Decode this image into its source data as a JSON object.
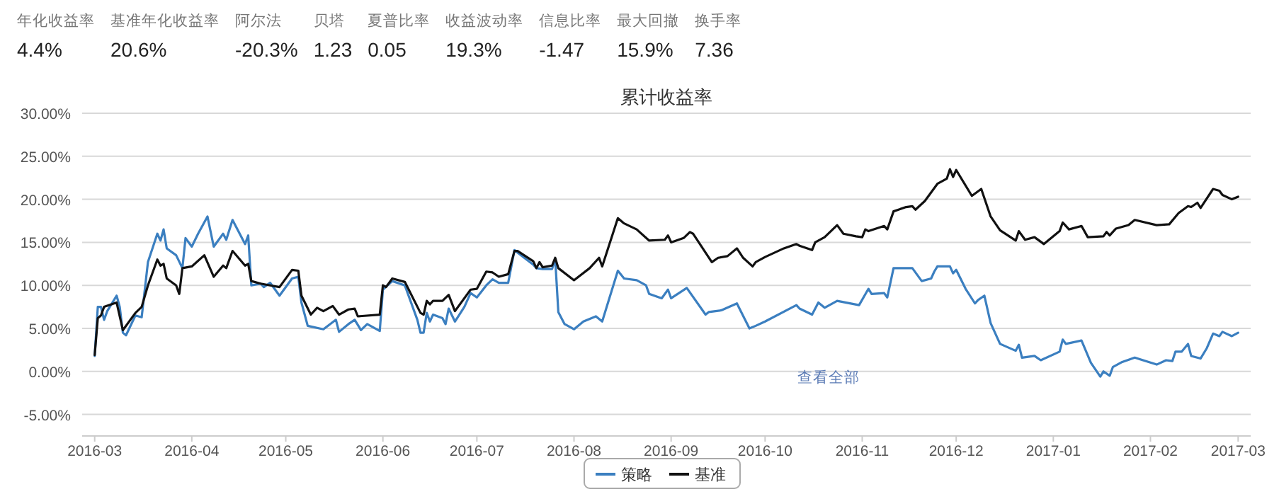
{
  "chart_data": {
    "type": "line",
    "title": "累计收益率",
    "annotations": [
      "年化收益率\n4.4%",
      "基准年化收益率\n20.6%",
      "阿尔法\n-20.3%",
      "贝塔\n1.23",
      "夏普比率\n0.05",
      "收益波动率\n19.3%",
      "信息比率\n-1.47",
      "最大回撤\n15.9%",
      "换手率\n7.36",
      "查看全部"
    ],
    "xlim": [
      "2016-02-26",
      "2017-03-05"
    ],
    "xticks": [
      "2016-03",
      "2016-04",
      "2016-05",
      "2016-06",
      "2016-07",
      "2016-08",
      "2016-09",
      "2016-10",
      "2016-11",
      "2016-12",
      "2017-01",
      "2017-02",
      "2017-03"
    ],
    "ylim": [
      -7.5,
      30
    ],
    "yticks": [
      {
        "value": -5,
        "label": "-5.00%"
      },
      {
        "value": 0,
        "label": "0.00%"
      },
      {
        "value": 5,
        "label": "5.00%"
      },
      {
        "value": 10,
        "label": "10.00%"
      },
      {
        "value": 15,
        "label": "15.00%"
      },
      {
        "value": 20,
        "label": "20.00%"
      },
      {
        "value": 25,
        "label": "25.00%"
      },
      {
        "value": 30,
        "label": "30.00%"
      }
    ],
    "grid": "y",
    "legend": "bottom",
    "marker": "none",
    "line_style": "solid",
    "series": [
      {
        "name": "策略",
        "color": "#3b7fc0",
        "x": [
          "2016-03-01",
          "2016-03-02",
          "2016-03-03",
          "2016-03-04",
          "2016-03-05",
          "2016-03-08",
          "2016-03-09",
          "2016-03-10",
          "2016-03-11",
          "2016-03-14",
          "2016-03-16",
          "2016-03-18",
          "2016-03-21",
          "2016-03-22",
          "2016-03-23",
          "2016-03-24",
          "2016-03-27",
          "2016-03-29",
          "2016-03-30",
          "2016-04-01",
          "2016-04-03",
          "2016-04-06",
          "2016-04-08",
          "2016-04-11",
          "2016-04-12",
          "2016-04-14",
          "2016-04-18",
          "2016-04-19",
          "2016-04-20",
          "2016-04-23",
          "2016-04-24",
          "2016-04-26",
          "2016-04-29",
          "2016-05-03",
          "2016-05-05",
          "2016-05-06",
          "2016-05-08",
          "2016-05-13",
          "2016-05-17",
          "2016-05-18",
          "2016-05-21",
          "2016-05-23",
          "2016-05-25",
          "2016-05-27",
          "2016-05-31",
          "2016-06-01",
          "2016-06-04",
          "2016-06-08",
          "2016-06-12",
          "2016-06-13",
          "2016-06-14",
          "2016-06-15",
          "2016-06-16",
          "2016-06-17",
          "2016-06-20",
          "2016-06-21",
          "2016-06-22",
          "2016-06-24",
          "2016-06-27",
          "2016-06-29",
          "2016-07-01",
          "2016-07-04",
          "2016-07-06",
          "2016-07-08",
          "2016-07-11",
          "2016-07-13",
          "2016-07-14",
          "2016-07-19",
          "2016-07-20",
          "2016-07-22",
          "2016-07-25",
          "2016-07-26",
          "2016-07-27",
          "2016-07-29",
          "2016-08-01",
          "2016-08-04",
          "2016-08-08",
          "2016-08-10",
          "2016-08-15",
          "2016-08-17",
          "2016-08-21",
          "2016-08-24",
          "2016-08-25",
          "2016-08-29",
          "2016-08-31",
          "2016-09-01",
          "2016-09-06",
          "2016-09-12",
          "2016-09-13",
          "2016-09-17",
          "2016-09-22",
          "2016-09-26",
          "2016-09-28",
          "2016-10-01",
          "2016-10-11",
          "2016-10-12",
          "2016-10-16",
          "2016-10-18",
          "2016-10-20",
          "2016-10-24",
          "2016-10-31",
          "2016-11-03",
          "2016-11-04",
          "2016-11-08",
          "2016-11-09",
          "2016-11-11",
          "2016-11-17",
          "2016-11-20",
          "2016-11-23",
          "2016-11-24",
          "2016-11-25",
          "2016-11-29",
          "2016-11-30",
          "2016-12-01",
          "2016-12-04",
          "2016-12-07",
          "2016-12-08",
          "2016-12-10",
          "2016-12-12",
          "2016-12-15",
          "2016-12-20",
          "2016-12-21",
          "2016-12-22",
          "2016-12-26",
          "2016-12-28",
          "2017-01-03",
          "2017-01-04",
          "2017-01-05",
          "2017-01-10",
          "2017-01-13",
          "2017-01-16",
          "2017-01-17",
          "2017-01-19",
          "2017-01-20",
          "2017-01-23",
          "2017-01-27",
          "2017-02-03",
          "2017-02-06",
          "2017-02-08",
          "2017-02-09",
          "2017-02-11",
          "2017-02-13",
          "2017-02-14",
          "2017-02-17",
          "2017-02-19",
          "2017-02-21",
          "2017-02-23",
          "2017-02-24",
          "2017-02-27",
          "2017-03-01"
        ],
        "values": [
          1.8,
          7.5,
          7.5,
          6.0,
          7.0,
          8.8,
          7.5,
          4.5,
          4.2,
          6.5,
          6.3,
          12.7,
          16.0,
          15.2,
          16.5,
          14.3,
          13.5,
          12.0,
          15.5,
          14.5,
          16.0,
          18.0,
          14.5,
          16.0,
          15.3,
          17.6,
          14.8,
          15.8,
          10.0,
          10.2,
          9.8,
          10.3,
          8.8,
          10.8,
          11.0,
          8.0,
          5.3,
          4.9,
          6.0,
          4.6,
          5.5,
          6.0,
          4.8,
          5.5,
          4.7,
          9.5,
          10.5,
          10.0,
          6.0,
          4.5,
          4.5,
          6.8,
          5.8,
          6.6,
          6.2,
          5.5,
          7.3,
          5.8,
          7.5,
          9.1,
          8.6,
          10.0,
          10.7,
          10.3,
          10.3,
          14.1,
          13.8,
          12.4,
          12.0,
          11.9,
          11.9,
          13.1,
          6.9,
          5.5,
          4.9,
          5.8,
          6.4,
          5.8,
          11.7,
          10.8,
          10.6,
          10.0,
          9.0,
          8.5,
          9.5,
          8.5,
          9.7,
          6.6,
          6.9,
          7.1,
          7.9,
          5.0,
          5.3,
          5.8,
          7.7,
          7.3,
          6.6,
          8.0,
          7.4,
          8.2,
          7.7,
          9.6,
          9.0,
          9.1,
          8.6,
          12.0,
          12.0,
          10.5,
          10.8,
          11.6,
          12.2,
          12.2,
          11.4,
          11.8,
          9.6,
          7.9,
          8.3,
          8.8,
          5.6,
          3.2,
          2.4,
          3.1,
          1.6,
          1.8,
          1.3,
          2.3,
          3.7,
          3.2,
          3.6,
          1.0,
          -0.6,
          0.0,
          -0.5,
          0.5,
          1.1,
          1.6,
          0.8,
          1.3,
          1.2,
          2.3,
          2.3,
          3.2,
          1.8,
          1.5,
          2.7,
          4.4,
          4.1,
          4.6,
          4.1,
          4.5
        ]
      },
      {
        "name": "基准",
        "color": "#111111",
        "x": [
          "2016-03-01",
          "2016-03-02",
          "2016-03-03",
          "2016-03-04",
          "2016-03-08",
          "2016-03-10",
          "2016-03-14",
          "2016-03-16",
          "2016-03-18",
          "2016-03-21",
          "2016-03-22",
          "2016-03-23",
          "2016-03-24",
          "2016-03-27",
          "2016-03-28",
          "2016-03-29",
          "2016-04-01",
          "2016-04-05",
          "2016-04-08",
          "2016-04-11",
          "2016-04-12",
          "2016-04-14",
          "2016-04-18",
          "2016-04-19",
          "2016-04-20",
          "2016-04-23",
          "2016-04-26",
          "2016-04-29",
          "2016-05-03",
          "2016-05-05",
          "2016-05-06",
          "2016-05-09",
          "2016-05-11",
          "2016-05-13",
          "2016-05-16",
          "2016-05-18",
          "2016-05-21",
          "2016-05-23",
          "2016-05-24",
          "2016-05-31",
          "2016-06-01",
          "2016-06-02",
          "2016-06-04",
          "2016-06-08",
          "2016-06-13",
          "2016-06-14",
          "2016-06-15",
          "2016-06-16",
          "2016-06-17",
          "2016-06-20",
          "2016-06-22",
          "2016-06-24",
          "2016-06-29",
          "2016-07-01",
          "2016-07-04",
          "2016-07-06",
          "2016-07-08",
          "2016-07-11",
          "2016-07-13",
          "2016-07-14",
          "2016-07-19",
          "2016-07-20",
          "2016-07-21",
          "2016-07-22",
          "2016-07-25",
          "2016-07-26",
          "2016-07-27",
          "2016-08-01",
          "2016-08-06",
          "2016-08-09",
          "2016-08-10",
          "2016-08-15",
          "2016-08-17",
          "2016-08-21",
          "2016-08-25",
          "2016-08-30",
          "2016-08-31",
          "2016-09-01",
          "2016-09-05",
          "2016-09-07",
          "2016-09-08",
          "2016-09-14",
          "2016-09-16",
          "2016-09-19",
          "2016-09-22",
          "2016-09-24",
          "2016-09-27",
          "2016-09-28",
          "2016-10-01",
          "2016-10-07",
          "2016-10-11",
          "2016-10-12",
          "2016-10-16",
          "2016-10-17",
          "2016-10-20",
          "2016-10-24",
          "2016-10-26",
          "2016-10-30",
          "2016-11-01",
          "2016-11-02",
          "2016-11-03",
          "2016-11-08",
          "2016-11-09",
          "2016-11-11",
          "2016-11-15",
          "2016-11-17",
          "2016-11-18",
          "2016-11-21",
          "2016-11-25",
          "2016-11-28",
          "2016-11-29",
          "2016-11-30",
          "2016-12-01",
          "2016-12-06",
          "2016-12-09",
          "2016-12-12",
          "2016-12-15",
          "2016-12-20",
          "2016-12-21",
          "2016-12-23",
          "2016-12-26",
          "2016-12-29",
          "2017-01-03",
          "2017-01-04",
          "2017-01-06",
          "2017-01-10",
          "2017-01-12",
          "2017-01-17",
          "2017-01-18",
          "2017-01-19",
          "2017-01-21",
          "2017-01-25",
          "2017-01-27",
          "2017-02-03",
          "2017-02-07",
          "2017-02-10",
          "2017-02-13",
          "2017-02-14",
          "2017-02-16",
          "2017-02-17",
          "2017-02-21",
          "2017-02-23",
          "2017-02-24",
          "2017-02-27",
          "2017-03-01"
        ],
        "values": [
          1.9,
          6.2,
          6.5,
          7.5,
          8.0,
          4.8,
          6.8,
          7.5,
          10.0,
          13.0,
          12.3,
          12.5,
          10.8,
          10.0,
          9.0,
          12.0,
          12.2,
          13.5,
          11.0,
          12.3,
          12.0,
          14.0,
          12.3,
          12.5,
          10.5,
          10.2,
          10.0,
          9.8,
          11.8,
          11.7,
          8.8,
          6.6,
          7.4,
          7.0,
          7.6,
          6.6,
          7.2,
          7.3,
          6.4,
          6.6,
          10.0,
          9.8,
          10.8,
          10.4,
          6.8,
          6.6,
          8.2,
          7.8,
          8.2,
          8.2,
          8.9,
          7.0,
          9.5,
          9.6,
          11.6,
          11.5,
          11.0,
          11.3,
          14.0,
          14.0,
          12.8,
          12.0,
          12.7,
          12.1,
          12.3,
          13.2,
          12.0,
          10.6,
          12.0,
          13.2,
          12.2,
          17.8,
          17.2,
          16.5,
          15.2,
          15.3,
          15.8,
          15.0,
          15.5,
          16.2,
          16.0,
          12.7,
          13.2,
          13.4,
          14.3,
          13.2,
          12.2,
          12.7,
          13.3,
          14.3,
          14.8,
          14.6,
          14.1,
          15.0,
          15.6,
          17.0,
          16.0,
          15.7,
          15.6,
          16.5,
          16.3,
          16.9,
          16.5,
          18.6,
          19.1,
          19.2,
          18.8,
          19.8,
          21.8,
          22.4,
          23.5,
          22.6,
          23.4,
          20.4,
          21.2,
          18.0,
          16.4,
          15.2,
          16.3,
          15.3,
          15.6,
          14.8,
          16.3,
          17.3,
          16.5,
          16.9,
          15.6,
          15.7,
          16.2,
          15.8,
          16.6,
          17.0,
          17.6,
          17.0,
          17.1,
          18.4,
          19.2,
          19.1,
          19.6,
          19.0,
          21.2,
          21.0,
          20.5,
          20.0,
          20.3
        ]
      }
    ]
  }
}
